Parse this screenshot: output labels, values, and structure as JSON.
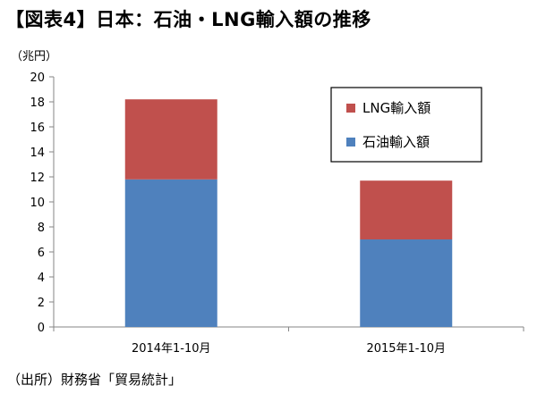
{
  "header": {
    "title": "【図表4】日本：石油・LNG輸入額の推移"
  },
  "unit_label": "（兆円）",
  "source_note": "（出所）財務省「貿易統計」",
  "chart_data": {
    "type": "bar",
    "stacked": true,
    "title": "【図表4】日本：石油・LNG輸入額の推移",
    "xlabel": "",
    "ylabel": "（兆円）",
    "categories": [
      "2014年1-10月",
      "2015年1-10月"
    ],
    "series": [
      {
        "name": "石油輸入額",
        "values": [
          11.8,
          7.0
        ],
        "color": "#4f81bd"
      },
      {
        "name": "LNG輸入額",
        "values": [
          6.4,
          4.7
        ],
        "color": "#c0504d"
      }
    ],
    "ylim": [
      0,
      20
    ],
    "yticks": [
      0,
      2,
      4,
      6,
      8,
      10,
      12,
      14,
      16,
      18,
      20
    ],
    "grid": false,
    "legend": {
      "position": "top-right",
      "order": [
        "LNG輸入額",
        "石油輸入額"
      ]
    }
  }
}
